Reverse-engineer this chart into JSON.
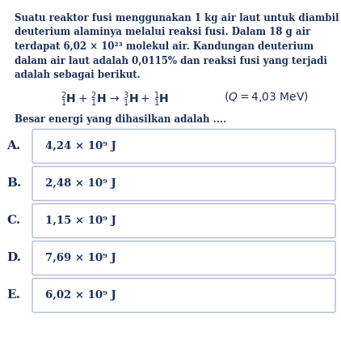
{
  "background_color": "#ffffff",
  "text_color": "#1a2e5a",
  "para_line1": "Suatu reaktor fusi menggunakan 1 kg air laut untuk diambil",
  "para_line2": "deuterium alaminya melalui reaksi fusi. Dalam 18 g air",
  "para_line3": "terdapat 6,02 × 10²³ molekul air. Kandungan deuterium",
  "para_line4": "dalam air laut adalah 0,0115% dan reaksi fusi yang terjadi",
  "para_line5": "adalah sebagai berikut.",
  "question": "Besar energi yang dihasilkan adalah ....",
  "choices": [
    {
      "label": "A.",
      "text": "4,24 × 10⁹ J"
    },
    {
      "label": "B.",
      "text": "2,48 × 10⁹ J"
    },
    {
      "label": "C.",
      "text": "1,15 × 10⁹ J"
    },
    {
      "label": "D.",
      "text": "7,69 × 10⁹ J"
    },
    {
      "label": "E.",
      "text": "6,02 × 10⁹ J"
    }
  ],
  "box_edge_color": "#b0bcd4",
  "box_fill_color": "#ffffff",
  "label_color": "#1a2e5a",
  "fs_para": 8.5,
  "fs_eq": 10.0,
  "fs_q": 8.5,
  "fs_choice": 9.5,
  "fs_label": 11.0
}
